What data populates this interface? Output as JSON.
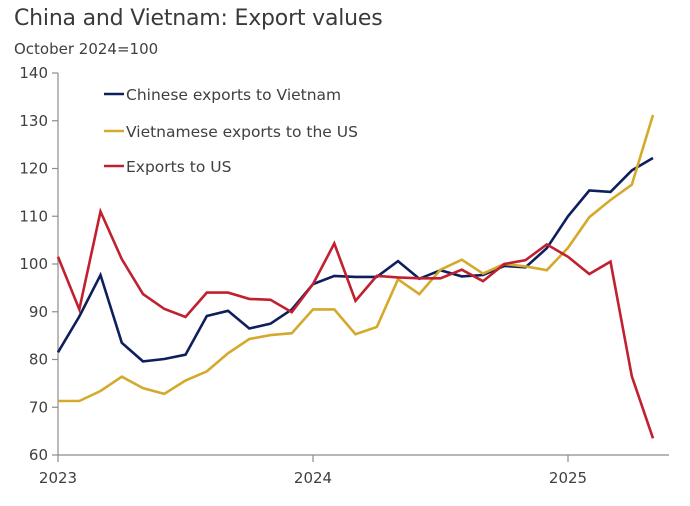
{
  "chart_data": {
    "type": "line",
    "title": "China and Vietnam: Export values",
    "subtitle": "October 2024=100",
    "xlabel": "",
    "ylabel": "",
    "ylim": [
      60,
      140
    ],
    "yticks": [
      60,
      70,
      80,
      90,
      100,
      110,
      120,
      130,
      140
    ],
    "xticks": [
      {
        "label": "2023",
        "index": 0
      },
      {
        "label": "2024",
        "index": 12
      },
      {
        "label": "2025",
        "index": 24
      }
    ],
    "x": [
      "2023-01",
      "2023-02",
      "2023-03",
      "2023-04",
      "2023-05",
      "2023-06",
      "2023-07",
      "2023-08",
      "2023-09",
      "2023-10",
      "2023-11",
      "2023-12",
      "2024-01",
      "2024-02",
      "2024-03",
      "2024-04",
      "2024-05",
      "2024-06",
      "2024-07",
      "2024-08",
      "2024-09",
      "2024-10",
      "2024-11",
      "2024-12",
      "2025-01",
      "2025-02",
      "2025-03",
      "2025-04",
      "2025-05"
    ],
    "grid": false,
    "legend_position": "top-left",
    "series": [
      {
        "name": "Chinese exports to Vietnam",
        "color": "#0e1f5b",
        "values": [
          81.5,
          89,
          97.7,
          83.5,
          79.6,
          80.1,
          81,
          89.1,
          90.2,
          86.5,
          87.5,
          90.5,
          95.8,
          97.5,
          97.3,
          97.3,
          100.6,
          96.9,
          98.7,
          97.4,
          97.7,
          99.6,
          99.3,
          103.3,
          110,
          115.4,
          115.1,
          119.6,
          122.2
        ]
      },
      {
        "name": "Vietnamese exports to the US",
        "color": "#d4a92c",
        "values": [
          71.3,
          71.3,
          73.4,
          76.4,
          74,
          72.8,
          75.6,
          77.5,
          81.3,
          84.3,
          85.1,
          85.5,
          90.5,
          90.5,
          85.3,
          86.8,
          96.8,
          93.7,
          98.8,
          100.9,
          98,
          100,
          99.5,
          98.7,
          103.4,
          109.8,
          113.4,
          116.6,
          131.2
        ]
      },
      {
        "name": "Exports to US",
        "color": "#c0202f",
        "values": [
          101.5,
          90.5,
          111,
          101,
          93.7,
          90.6,
          88.9,
          94,
          94,
          92.7,
          92.5,
          89.9,
          95.8,
          104.3,
          92.3,
          97.5,
          97.2,
          97,
          97,
          98.8,
          96.4,
          100,
          100.8,
          104.1,
          101.5,
          97.9,
          100.5,
          76.5,
          63.5
        ]
      }
    ]
  }
}
